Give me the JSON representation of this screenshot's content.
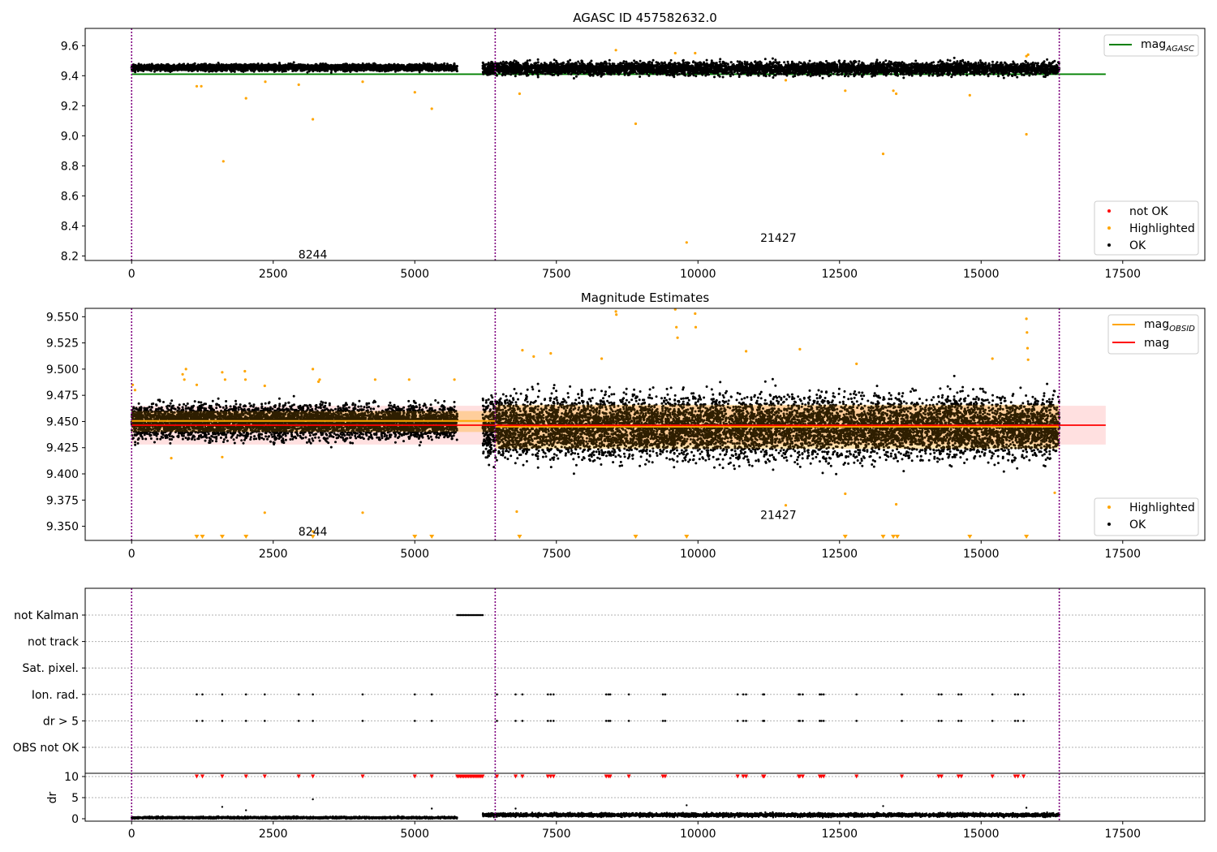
{
  "chart_data": [
    {
      "type": "scatter",
      "title": "AGASC ID 457582632.0",
      "xlim": [
        -820,
        18950
      ],
      "ylim": [
        8.17,
        9.715
      ],
      "xticks": [
        0,
        2500,
        5000,
        7500,
        10000,
        12500,
        15000,
        17500
      ],
      "xtick_labels": [
        "0",
        "2500",
        "5000",
        "7500",
        "10000",
        "12500",
        "15000",
        "17500"
      ],
      "yticks": [
        8.2,
        8.4,
        8.6,
        8.8,
        9.0,
        9.2,
        9.4,
        9.6
      ],
      "ytick_labels": [
        "8.2",
        "8.4",
        "8.6",
        "8.8",
        "9.0",
        "9.2",
        "9.4",
        "9.6"
      ],
      "obsid_boundaries": [
        0,
        6420,
        16380
      ],
      "obsid_labels": [
        {
          "text": "8244",
          "x": 3200,
          "y": 8.21
        },
        {
          "text": "21427",
          "x": 11420,
          "y": 8.32
        }
      ],
      "reference_line": {
        "name": "mag_AGASC",
        "label": "mag",
        "subscript": "AGASC",
        "y": 9.41,
        "x": [
          0,
          17200
        ],
        "color": "#008000"
      },
      "series": [
        {
          "name": "OK",
          "color": "#000000",
          "segments": [
            {
              "x": [
                0,
                5750
              ],
              "center": 9.455,
              "spread": 0.018
            },
            {
              "x": [
                6200,
                16380
              ],
              "center": 9.448,
              "spread": 0.035
            }
          ]
        },
        {
          "name": "Highlighted",
          "color": "#FFA500",
          "points": [
            [
              1150,
              9.33
            ],
            [
              1230,
              9.33
            ],
            [
              1620,
              8.83
            ],
            [
              2020,
              9.25
            ],
            [
              2360,
              9.36
            ],
            [
              2950,
              9.34
            ],
            [
              3200,
              9.11
            ],
            [
              4080,
              9.36
            ],
            [
              5000,
              9.29
            ],
            [
              5300,
              9.18
            ],
            [
              6850,
              9.28
            ],
            [
              8550,
              9.57
            ],
            [
              8900,
              9.08
            ],
            [
              9600,
              9.55
            ],
            [
              9800,
              8.29
            ],
            [
              9950,
              9.55
            ],
            [
              11550,
              9.37
            ],
            [
              12600,
              9.3
            ],
            [
              13270,
              8.88
            ],
            [
              13450,
              9.3
            ],
            [
              13500,
              9.28
            ],
            [
              14800,
              9.27
            ],
            [
              15800,
              9.01
            ],
            [
              15800,
              9.53
            ],
            [
              15830,
              9.54
            ]
          ]
        },
        {
          "name": "not OK",
          "color": "#FF0000",
          "points": []
        }
      ],
      "legend_top": {
        "placement": "upper right",
        "entries": [
          "mag_AGASC"
        ]
      },
      "legend_bottom": {
        "placement": "lower right",
        "entries": [
          "not OK",
          "Highlighted",
          "OK"
        ]
      }
    },
    {
      "type": "scatter",
      "title": "Magnitude Estimates",
      "xlim": [
        -820,
        18950
      ],
      "ylim": [
        9.3365,
        9.558
      ],
      "xticks": [
        0,
        2500,
        5000,
        7500,
        10000,
        12500,
        15000,
        17500
      ],
      "xtick_labels": [
        "0",
        "2500",
        "5000",
        "7500",
        "10000",
        "12500",
        "15000",
        "17500"
      ],
      "yticks": [
        9.35,
        9.375,
        9.4,
        9.425,
        9.45,
        9.475,
        9.5,
        9.525,
        9.55
      ],
      "ytick_labels": [
        "9.350",
        "9.375",
        "9.400",
        "9.425",
        "9.450",
        "9.475",
        "9.500",
        "9.525",
        "9.550"
      ],
      "obsid_boundaries": [
        0,
        6420,
        16380
      ],
      "obsid_labels": [
        {
          "text": "8244",
          "x": 3200,
          "y": 9.345
        },
        {
          "text": "21427",
          "x": 11420,
          "y": 9.361
        }
      ],
      "mag": {
        "name": "mag",
        "value": 9.4465,
        "band": [
          9.428,
          9.465
        ],
        "x": [
          0,
          17200
        ],
        "color": "#FF0000"
      },
      "mag_obsid": [
        {
          "label": "mag",
          "subscript": "OBSID",
          "x": [
            0,
            6420
          ],
          "value": 9.4505,
          "band": [
            9.44,
            9.46
          ]
        },
        {
          "label": "mag",
          "subscript": "OBSID",
          "x": [
            6420,
            16380
          ],
          "value": 9.445,
          "band": [
            9.424,
            9.466
          ]
        }
      ],
      "mag_obsid_color": "#FFA500",
      "series": [
        {
          "name": "OK",
          "color": "#000000",
          "segments": [
            {
              "x": [
                0,
                5750
              ],
              "center": 9.45,
              "spread": 0.013
            },
            {
              "x": [
                6200,
                16380
              ],
              "center": 9.445,
              "spread": 0.024
            }
          ]
        },
        {
          "name": "Highlighted",
          "color": "#FFA500",
          "points": [
            [
              20,
              9.485
            ],
            [
              60,
              9.48
            ],
            [
              900,
              9.495
            ],
            [
              930,
              9.49
            ],
            [
              960,
              9.5
            ],
            [
              1150,
              9.485
            ],
            [
              1600,
              9.497
            ],
            [
              1650,
              9.49
            ],
            [
              2000,
              9.498
            ],
            [
              2010,
              9.49
            ],
            [
              2350,
              9.484
            ],
            [
              3200,
              9.5
            ],
            [
              3300,
              9.488
            ],
            [
              3320,
              9.49
            ],
            [
              4300,
              9.49
            ],
            [
              4900,
              9.49
            ],
            [
              5700,
              9.49
            ],
            [
              6900,
              9.518
            ],
            [
              7100,
              9.512
            ],
            [
              7400,
              9.515
            ],
            [
              8300,
              9.51
            ],
            [
              8550,
              9.555
            ],
            [
              8560,
              9.552
            ],
            [
              9600,
              9.557
            ],
            [
              9620,
              9.54
            ],
            [
              9640,
              9.53
            ],
            [
              9950,
              9.553
            ],
            [
              9960,
              9.54
            ],
            [
              10850,
              9.517
            ],
            [
              11800,
              9.519
            ],
            [
              12800,
              9.505
            ],
            [
              15200,
              9.51
            ],
            [
              15800,
              9.548
            ],
            [
              15810,
              9.535
            ],
            [
              15820,
              9.52
            ],
            [
              15830,
              9.509
            ],
            [
              700,
              9.415
            ],
            [
              1600,
              9.416
            ],
            [
              2350,
              9.363
            ],
            [
              3200,
              9.345
            ],
            [
              4080,
              9.363
            ],
            [
              6800,
              9.364
            ],
            [
              11550,
              9.37
            ],
            [
              12600,
              9.381
            ],
            [
              13500,
              9.371
            ],
            [
              16300,
              9.382
            ]
          ]
        }
      ],
      "below_range_markers_x": [
        1150,
        1250,
        1600,
        2020,
        3200,
        5000,
        5300,
        6850,
        8900,
        9800,
        12600,
        13270,
        13450,
        13520,
        14800,
        15800
      ],
      "legend_top": {
        "placement": "upper right",
        "entries": [
          "mag_OBSID",
          "mag"
        ]
      },
      "legend_bottom": {
        "placement": "lower right",
        "entries": [
          "Highlighted",
          "OK"
        ]
      }
    },
    {
      "type": "scatter",
      "title": "",
      "xlim": [
        -820,
        18950
      ],
      "ylim": [
        -0.5,
        6.5
      ],
      "xticks": [
        0,
        2500,
        5000,
        7500,
        10000,
        12500,
        15000,
        17500
      ],
      "xtick_labels": [
        "0",
        "2500",
        "5000",
        "7500",
        "10000",
        "12500",
        "15000",
        "17500"
      ],
      "flag_categories": [
        "not Kalman",
        "not track",
        "Sat. pixel.",
        "Ion. rad.",
        "dr > 5",
        "OBS not OK"
      ],
      "dr_ylabel": "dr",
      "dr_yticks": [
        0,
        5,
        10
      ],
      "dr_ytick_labels": [
        "0",
        "5",
        "10"
      ],
      "obsid_boundaries": [
        0,
        6420,
        16380
      ],
      "flags": {
        "not Kalman": {
          "ranges": [
            [
              5750,
              6200
            ]
          ]
        },
        "Ion. rad.": {
          "x": [
            1150,
            1250,
            1600,
            2020,
            2350,
            2950,
            3200,
            4080,
            5000,
            5300,
            6450,
            6780,
            6900,
            7350,
            7400,
            7450,
            8380,
            8420,
            8450,
            8780,
            9380,
            9420,
            10700,
            10800,
            10850,
            11150,
            11170,
            11780,
            11800,
            11850,
            12150,
            12180,
            12220,
            12800,
            13600,
            14250,
            14300,
            14600,
            14650,
            15200,
            15600,
            15650,
            15750
          ]
        },
        "dr > 5": {
          "x": [
            1150,
            1250,
            1600,
            2020,
            2350,
            2950,
            3200,
            4080,
            5000,
            5300,
            6450,
            6780,
            6900,
            7350,
            7400,
            7450,
            8380,
            8420,
            8450,
            8780,
            9380,
            9420,
            10700,
            10800,
            10850,
            11150,
            11170,
            11780,
            11800,
            11850,
            12150,
            12180,
            12220,
            12800,
            13600,
            14250,
            14300,
            14600,
            14650,
            15200,
            15600,
            15650,
            15750
          ]
        }
      },
      "dr_clipped_x": [
        1150,
        1250,
        1600,
        2020,
        2350,
        2950,
        3200,
        4080,
        5000,
        5300,
        6450,
        6780,
        6900,
        7350,
        7400,
        7450,
        8380,
        8420,
        8450,
        8780,
        9380,
        9420,
        10700,
        10800,
        10850,
        11150,
        11170,
        11780,
        11800,
        11850,
        12150,
        12180,
        12220,
        12800,
        13600,
        14250,
        14300,
        14600,
        14650,
        15200,
        15600,
        15650,
        15750
      ],
      "dr_clipped_range": [
        5750,
        6200
      ],
      "dr_series": {
        "segments": [
          {
            "x": [
              0,
              5750
            ],
            "center": 0.25,
            "spread": 0.2
          },
          {
            "x": [
              6200,
              16380
            ],
            "center": 0.9,
            "spread": 0.35
          }
        ],
        "outliers": [
          [
            1600,
            2.8
          ],
          [
            2020,
            2.0
          ],
          [
            3200,
            4.6
          ],
          [
            5300,
            2.4
          ],
          [
            6780,
            2.4
          ],
          [
            9800,
            3.2
          ],
          [
            13270,
            3.0
          ],
          [
            15800,
            2.6
          ]
        ]
      }
    }
  ]
}
